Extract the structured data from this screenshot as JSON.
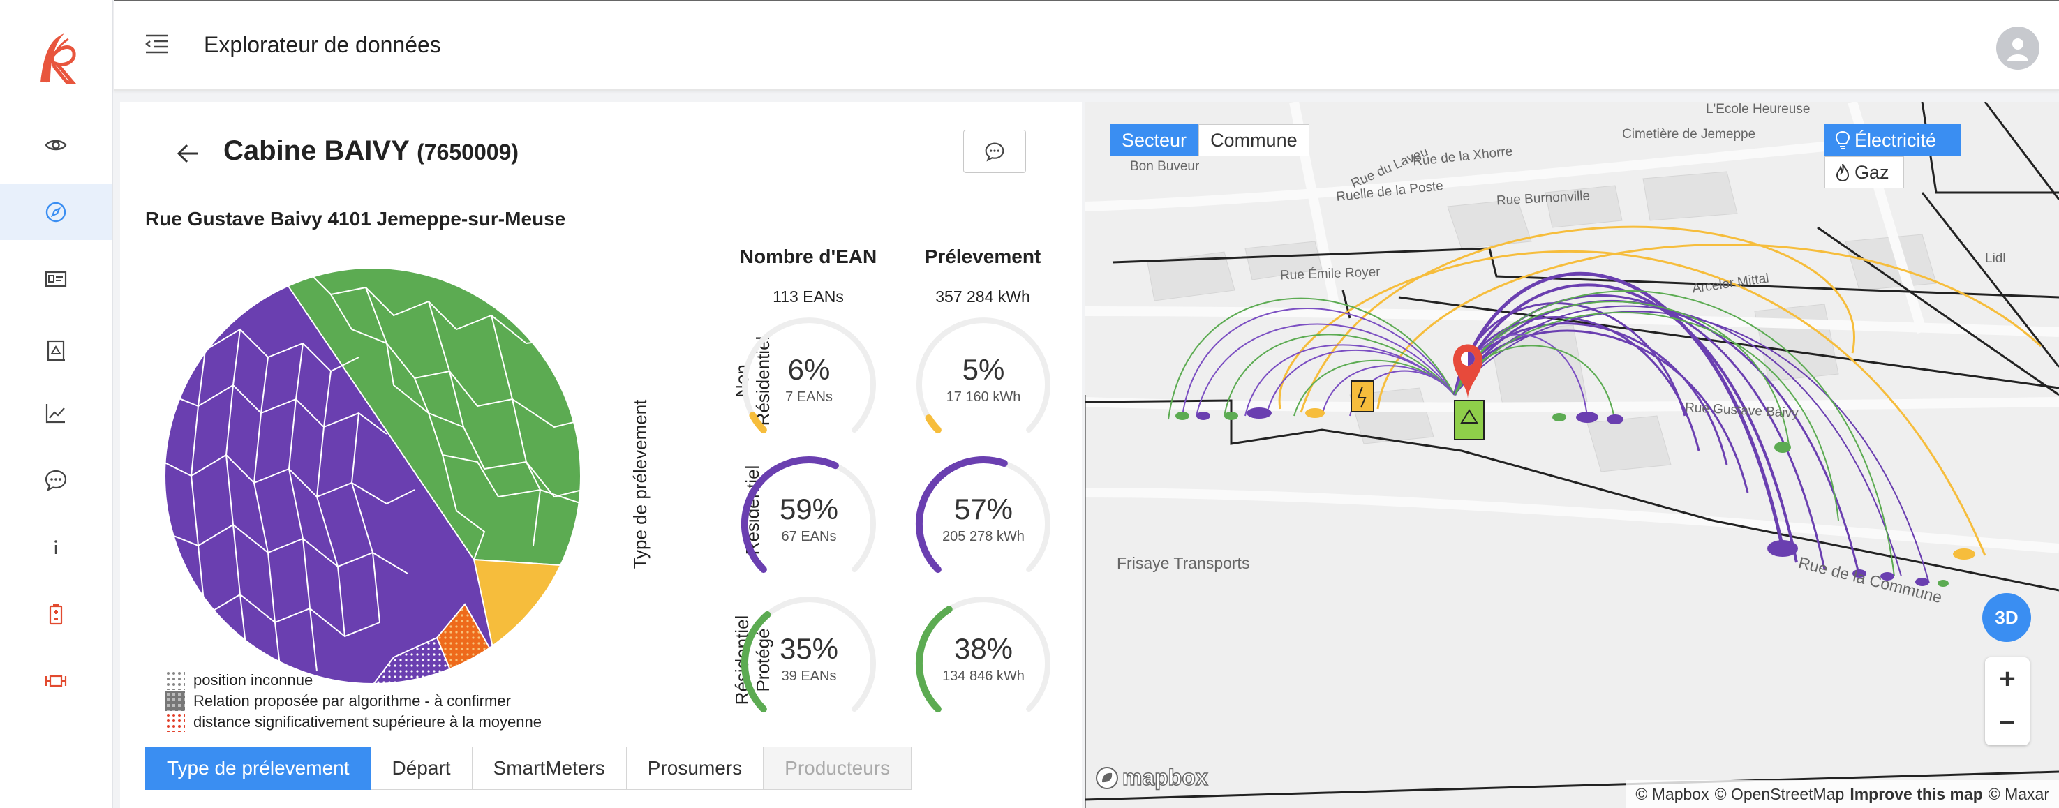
{
  "header": {
    "title": "Explorateur de données"
  },
  "sidebar": {
    "icons": [
      "eye-icon",
      "compass-icon",
      "id-card-icon",
      "building-icon",
      "chart-line-icon",
      "chat-icon",
      "info-icon",
      "battery-icon",
      "connector-icon"
    ],
    "active_index": 1
  },
  "cabin": {
    "name": "Cabine BAIVY",
    "code": "(7650009)",
    "address": "Rue Gustave Baivy 4101 Jemeppe-sur-Meuse"
  },
  "pie": {
    "colors": {
      "residentiel": "#6a3fb0",
      "protege": "#5cab52",
      "non_residentiel": "#f6bd3c",
      "unknown": "#6a3fb0",
      "far": "#ee6a1b"
    }
  },
  "legend": [
    {
      "label": "position inconnue"
    },
    {
      "label": "Relation proposée par algorithme - à confirmer"
    },
    {
      "label": "distance significativement supérieure à la moyenne"
    }
  ],
  "stats": {
    "col1_title": "Nombre d'EAN",
    "col1_total": "113 EANs",
    "col2_title": "Prélevement",
    "col2_total": "357 284 kWh",
    "axis_title": "Type de prélevement",
    "rows": [
      {
        "label_line1": "Non",
        "label_line2": "Résidentiel",
        "color": "#f6bd3c",
        "ean_pct": "6%",
        "ean_sub": "7 EANs",
        "ean_frac": 0.06,
        "kwh_pct": "5%",
        "kwh_sub": "17 160 kWh",
        "kwh_frac": 0.05
      },
      {
        "label_line1": "",
        "label_line2": "Résidentiel",
        "color": "#6a3fb0",
        "ean_pct": "59%",
        "ean_sub": "67 EANs",
        "ean_frac": 0.59,
        "kwh_pct": "57%",
        "kwh_sub": "205 278 kWh",
        "kwh_frac": 0.57
      },
      {
        "label_line1": "Résidentiel",
        "label_line2": "Protégé",
        "color": "#5cab52",
        "ean_pct": "35%",
        "ean_sub": "39 EANs",
        "ean_frac": 0.35,
        "kwh_pct": "38%",
        "kwh_sub": "134 846 kWh",
        "kwh_frac": 0.38
      }
    ]
  },
  "tabs": [
    {
      "label": "Type de prélevement",
      "state": "active"
    },
    {
      "label": "Départ",
      "state": "normal"
    },
    {
      "label": "SmartMeters",
      "state": "normal"
    },
    {
      "label": "Prosumers",
      "state": "normal"
    },
    {
      "label": "Producteurs",
      "state": "disabled"
    }
  ],
  "map": {
    "scope_options": [
      "Secteur",
      "Commune"
    ],
    "scope_active": "Secteur",
    "energy_options": [
      "Électricité",
      "Gaz"
    ],
    "energy_active": "Électricité",
    "btn_3d": "3D",
    "zoom_in": "+",
    "zoom_out": "−",
    "mapbox": "mapbox",
    "attribution": {
      "mapbox": "© Mapbox",
      "osm": "© OpenStreetMap",
      "improve": "Improve this map",
      "maxar": "© Maxar"
    },
    "labels": [
      {
        "text": "L'Ecole Heureuse"
      },
      {
        "text": "Cimetière de Jemeppe"
      },
      {
        "text": "Bon Buveur"
      },
      {
        "text": "Rue du Laveu"
      },
      {
        "text": "Rue de la Xhorre"
      },
      {
        "text": "Ruelle de la Poste"
      },
      {
        "text": "Rue Burnonville"
      },
      {
        "text": "Rue Émile Royer"
      },
      {
        "text": "Lidl"
      },
      {
        "text": "Arcelor Mittal"
      },
      {
        "text": "Rue Gustave Baivy"
      },
      {
        "text": "Frisaye Transports"
      },
      {
        "text": "Rue de la Commune"
      }
    ]
  }
}
